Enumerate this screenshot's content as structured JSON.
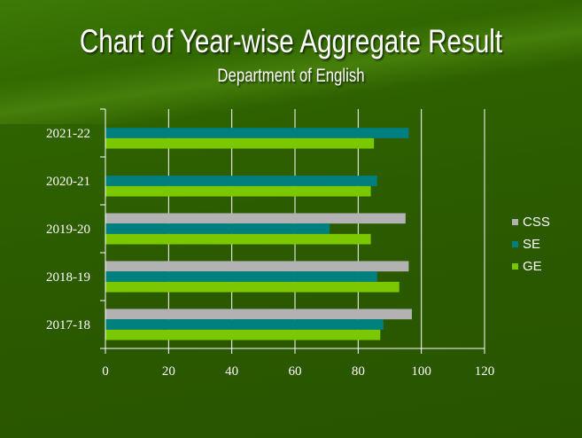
{
  "chart_data": {
    "type": "bar",
    "orientation": "horizontal",
    "title": "Chart of  Year-wise Aggregate Result",
    "subtitle": "Department of English",
    "categories": [
      "2017-18",
      "2018-19",
      "2019-20",
      "2020-21",
      "2021-22"
    ],
    "series": [
      {
        "name": "CSS",
        "color": "#b2b2b2",
        "values": [
          97,
          96,
          95,
          null,
          null
        ]
      },
      {
        "name": "SE",
        "color": "#007f7f",
        "values": [
          88,
          86,
          71,
          86,
          96
        ]
      },
      {
        "name": "GE",
        "color": "#7cc800",
        "values": [
          87,
          93,
          84,
          84,
          85
        ]
      }
    ],
    "xlim": [
      0,
      120
    ],
    "xticks": [
      0,
      20,
      40,
      60,
      80,
      100,
      120
    ],
    "grid": true,
    "legend": "right"
  }
}
